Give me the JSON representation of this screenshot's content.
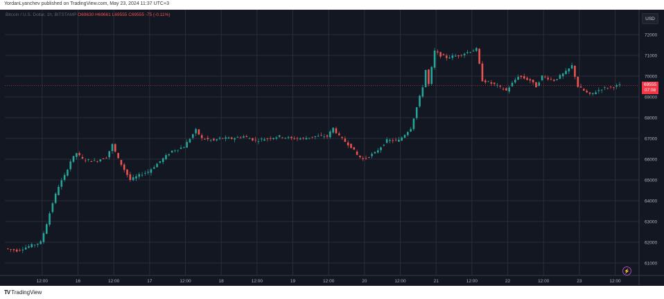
{
  "header": {
    "publisher_line": "YordanLyanchev published on TradingView.com, May 23, 2024 11:37 UTC+3"
  },
  "legend": {
    "symbol": "Bitcoin / U.S. Dollar, 1h, BITSTAMP",
    "open": "69630",
    "high": "69661",
    "low": "69555",
    "close": "69555",
    "change": "-75",
    "change_pct": "(-0.11%)"
  },
  "currency_button": "USD",
  "last_price": {
    "price": "69555",
    "countdown": "07:08"
  },
  "footer": {
    "brand": "TradingView"
  },
  "colors": {
    "background": "#131722",
    "grid": "#2a2e39",
    "up": "#26a69a",
    "down": "#ef5350",
    "price_tag": "#f23645"
  },
  "chart_data": {
    "type": "candlestick",
    "title": "Bitcoin / U.S. Dollar, 1h, BITSTAMP",
    "ylim": [
      60400,
      73200
    ],
    "y_ticks": [
      61000,
      62000,
      63000,
      64000,
      65000,
      66000,
      67000,
      68000,
      69000,
      70000,
      71000,
      72000
    ],
    "x_ticks": [
      "12:00",
      "16",
      "12:00",
      "17",
      "12:00",
      "18",
      "12:00",
      "19",
      "12:00",
      "20",
      "12:00",
      "21",
      "12:00",
      "22",
      "12:00",
      "23",
      "12:00"
    ],
    "x_tick_hours": [
      12,
      24,
      36,
      48,
      60,
      72,
      84,
      96,
      108,
      120,
      132,
      144,
      156,
      168,
      180,
      192,
      204
    ],
    "x_range_hours": [
      -0.5,
      212
    ],
    "hours_from_may15_0000": [
      0,
      4,
      8,
      12,
      14,
      16,
      18,
      20,
      22,
      24,
      26,
      30,
      34,
      36,
      38,
      42,
      46,
      48,
      52,
      56,
      60,
      64,
      66,
      70,
      72,
      76,
      80,
      84,
      88,
      92,
      96,
      100,
      104,
      108,
      110,
      112,
      116,
      118,
      120,
      124,
      128,
      132,
      136,
      140,
      141,
      142,
      144,
      146,
      148,
      152,
      156,
      158,
      160,
      164,
      168,
      172,
      176,
      178,
      180,
      184,
      188,
      190,
      192,
      194,
      196,
      200,
      204,
      206
    ],
    "price": [
      61700,
      61600,
      61800,
      62000,
      62900,
      63900,
      64700,
      65200,
      65900,
      66300,
      66000,
      65900,
      66100,
      66700,
      66000,
      65000,
      65300,
      65400,
      65900,
      66400,
      66600,
      67400,
      67000,
      66900,
      67000,
      67000,
      67100,
      66900,
      67000,
      67100,
      67000,
      67000,
      67100,
      67100,
      67500,
      67100,
      66600,
      66200,
      66000,
      66300,
      66900,
      66900,
      67500,
      69500,
      70300,
      69600,
      71200,
      71000,
      70900,
      71000,
      71200,
      71300,
      69800,
      69600,
      69300,
      70000,
      69800,
      69500,
      70000,
      69800,
      70200,
      70500,
      69500,
      69300,
      69100,
      69400,
      69500,
      69555
    ]
  }
}
